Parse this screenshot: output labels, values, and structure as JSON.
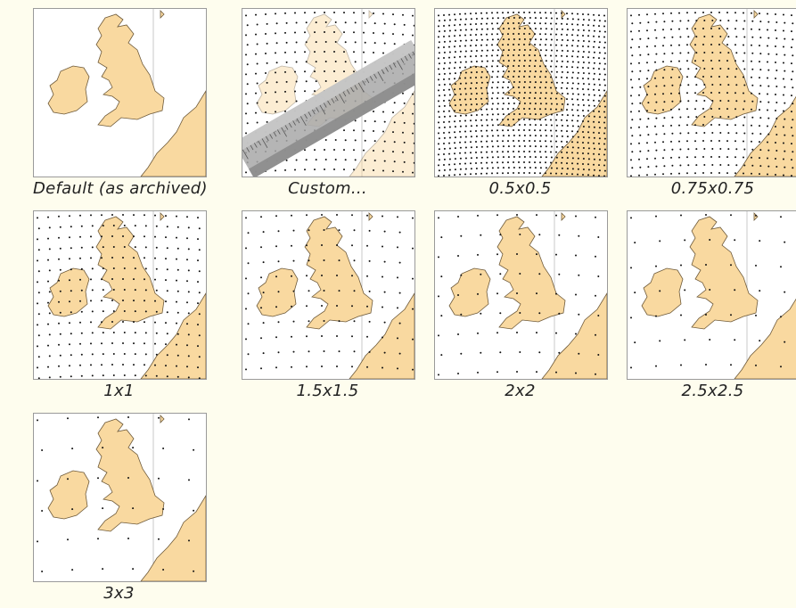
{
  "colors": {
    "land": "#f9d9a0",
    "land_stroke": "#6e5a3a",
    "background": "#fefdee",
    "dots": "#111111"
  },
  "options": [
    {
      "label": "Default (as archived)",
      "grid": "none"
    },
    {
      "label": "Custom...",
      "grid": "custom",
      "icon": "ruler-icon"
    },
    {
      "label": "0.5x0.5",
      "grid": 0.5
    },
    {
      "label": "0.75x0.75",
      "grid": 0.75
    },
    {
      "label": "1x1",
      "grid": 1
    },
    {
      "label": "1.5x1.5",
      "grid": 1.5
    },
    {
      "label": "2x2",
      "grid": 2
    },
    {
      "label": "2.5x2.5",
      "grid": 2.5
    },
    {
      "label": "3x3",
      "grid": 3
    }
  ]
}
